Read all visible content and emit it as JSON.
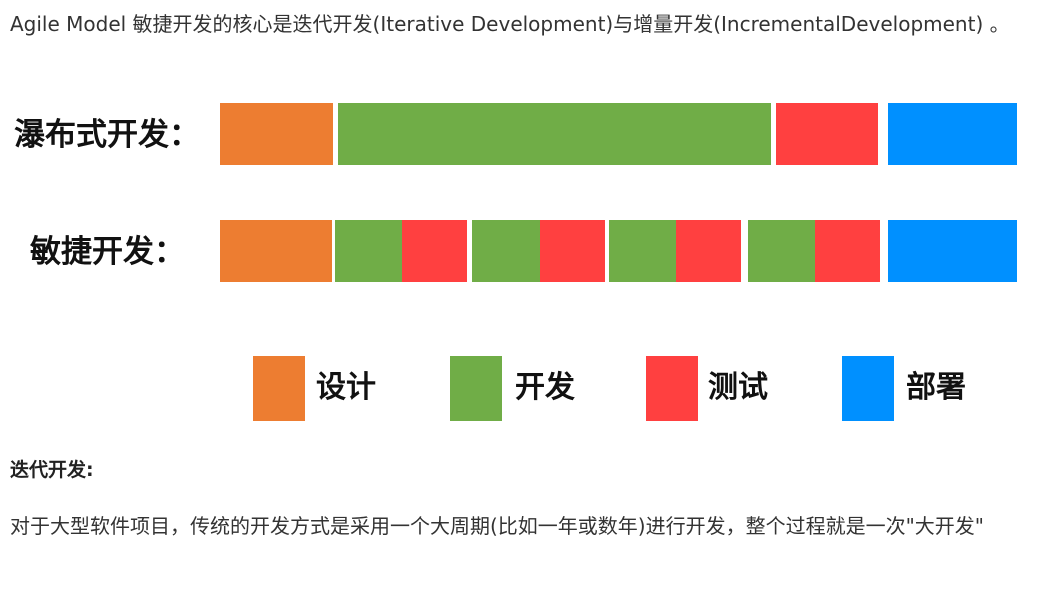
{
  "intro": {
    "text": "Agile Model 敏捷开发的核心是迭代开发(Iterative Development)与增量开发(IncrementalDevelopment) 。"
  },
  "diagram": {
    "colors": {
      "design": "#ED7D31",
      "develop": "#70AD47",
      "test": "#FF4040",
      "deploy": "#0090FF"
    },
    "rows": [
      {
        "label": "瀑布式开发：",
        "segments": [
          "design",
          "develop",
          "test",
          "deploy"
        ]
      },
      {
        "label": "敏捷开发：",
        "segments": [
          "design",
          "develop",
          "test",
          "develop",
          "test",
          "develop",
          "test",
          "develop",
          "test",
          "deploy"
        ]
      }
    ],
    "legend": [
      {
        "key": "design",
        "label": "设计"
      },
      {
        "key": "develop",
        "label": "开发"
      },
      {
        "key": "test",
        "label": "测试"
      },
      {
        "key": "deploy",
        "label": "部署"
      }
    ]
  },
  "section": {
    "heading": "迭代开发:",
    "body": "对于大型软件项目，传统的开发方式是采用一个大周期(比如一年或数年)进行开发，整个过程就是一次\"大开发\""
  }
}
